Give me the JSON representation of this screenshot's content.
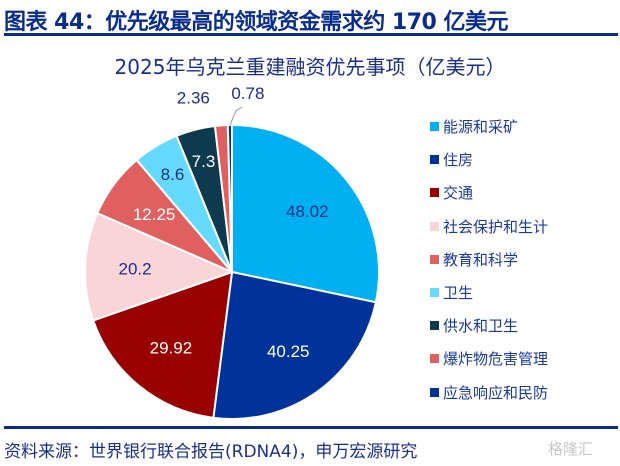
{
  "figure_title": "图表 44：优先级最高的领域资金需求约 170 亿美元",
  "source": "资料来源：世界银行联合报告(RDNA4)，申万宏源研究",
  "watermark": "格隆汇",
  "chart_data": {
    "type": "pie",
    "title": "2025年乌克兰重建融资优先事项（亿美元）",
    "start": "12 o'clock, clockwise",
    "legend_position": "right",
    "slices": [
      {
        "label": "能源和采矿",
        "value": 48.02,
        "value_label": "48.02",
        "color": "#00b0f0",
        "text_color": "#1a2f8a"
      },
      {
        "label": "住房",
        "value": 40.25,
        "value_label": "40.25",
        "color": "#003399",
        "text_color": "#ffffff"
      },
      {
        "label": "交通",
        "value": 29.92,
        "value_label": "29.92",
        "color": "#990000",
        "text_color": "#ffffff"
      },
      {
        "label": "社会保护和生计",
        "value": 20.2,
        "value_label": "20.2",
        "color": "#f9d5d8",
        "text_color": "#1a2f8a"
      },
      {
        "label": "教育和科学",
        "value": 12.25,
        "value_label": "12.25",
        "color": "#e06060",
        "text_color": "#ffffff"
      },
      {
        "label": "卫生",
        "value": 8.6,
        "value_label": "8.6",
        "color": "#66d9ff",
        "text_color": "#1a2f8a"
      },
      {
        "label": "供水和卫生",
        "value": 7.3,
        "value_label": "7.3",
        "color": "#0e3a4e",
        "text_color": "#ffffff"
      },
      {
        "label": "爆炸物危害管理",
        "value": 2.36,
        "value_label": "2.36",
        "color": "#e06060",
        "text_color": "#1a2f8a"
      },
      {
        "label": "应急响应和民防",
        "value": 0.78,
        "value_label": "0.78",
        "color": "#003399",
        "text_color": "#1a2f8a"
      }
    ]
  }
}
